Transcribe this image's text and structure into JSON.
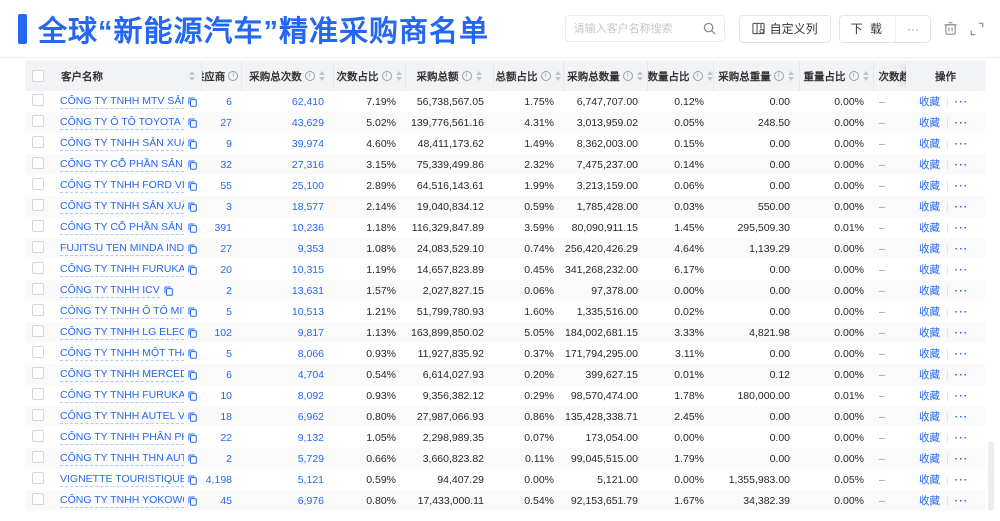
{
  "page": {
    "title": "全球“新能源汽车”精准采购商名单"
  },
  "toolbar": {
    "search_placeholder": "请输入客户名称搜索",
    "custom_columns_label": "自定义列",
    "download_label": "下 载",
    "more_label": "···"
  },
  "colors": {
    "accent_blue": "#2468f2",
    "header_bg": "#f2f3f6"
  },
  "table": {
    "columns": [
      {
        "key": "checkbox",
        "label": "",
        "checkbox": true
      },
      {
        "key": "name",
        "label": "客户名称",
        "sort": true
      },
      {
        "key": "supplier",
        "label": "供应商",
        "info": true,
        "sort": true
      },
      {
        "key": "total_count",
        "label": "采购总次数",
        "info": true,
        "sort": true
      },
      {
        "key": "count_ratio",
        "label": "次数占比",
        "info": true,
        "sort": true
      },
      {
        "key": "total_amount",
        "label": "采购总额",
        "info": true,
        "sort": true
      },
      {
        "key": "amount_ratio",
        "label": "总额占比",
        "info": true,
        "sort": true
      },
      {
        "key": "total_qty",
        "label": "采购总数量",
        "info": true,
        "sort": true
      },
      {
        "key": "qty_ratio",
        "label": "数量占比",
        "info": true,
        "sort": true
      },
      {
        "key": "total_weight",
        "label": "采购总重量",
        "info": true,
        "sort": true
      },
      {
        "key": "weight_ratio",
        "label": "重量占比",
        "info": true,
        "sort": true
      },
      {
        "key": "trend",
        "label": "次数趋势"
      },
      {
        "key": "ops",
        "label": "操作"
      }
    ],
    "ops": {
      "favorite_label": "收藏",
      "more_label": "···"
    },
    "rows": [
      {
        "name": "CÔNG TY TNHH MTV SẢN XUẤ...",
        "supplier": "6",
        "total_count": "62,410",
        "count_ratio": "7.19%",
        "total_amount": "56,738,567.05",
        "amount_ratio": "1.75%",
        "total_qty": "6,747,707.00",
        "qty_ratio": "0.12%",
        "total_weight": "0.00",
        "weight_ratio": "0.00%",
        "trend": "–"
      },
      {
        "name": "CÔNG TY Ô TÔ TOYOTA VIỆT ...",
        "supplier": "27",
        "total_count": "43,629",
        "count_ratio": "5.02%",
        "total_amount": "139,776,561.16",
        "amount_ratio": "4.31%",
        "total_qty": "3,013,959.02",
        "qty_ratio": "0.05%",
        "total_weight": "248.50",
        "weight_ratio": "0.00%",
        "trend": "–"
      },
      {
        "name": "CÔNG TY TNHH SẢN XUẤT VÀ ...",
        "supplier": "9",
        "total_count": "39,974",
        "count_ratio": "4.60%",
        "total_amount": "48,411,173.62",
        "amount_ratio": "1.49%",
        "total_qty": "8,362,003.00",
        "qty_ratio": "0.15%",
        "total_weight": "0.00",
        "weight_ratio": "0.00%",
        "trend": "–"
      },
      {
        "name": "CÔNG TY CỔ PHẦN SẢN XUẤT...",
        "supplier": "32",
        "total_count": "27,316",
        "count_ratio": "3.15%",
        "total_amount": "75,339,499.86",
        "amount_ratio": "2.32%",
        "total_qty": "7,475,237.00",
        "qty_ratio": "0.14%",
        "total_weight": "0.00",
        "weight_ratio": "0.00%",
        "trend": "–"
      },
      {
        "name": "CÔNG TY TNHH FORD VIỆT NAM",
        "supplier": "55",
        "total_count": "25,100",
        "count_ratio": "2.89%",
        "total_amount": "64,516,143.61",
        "amount_ratio": "1.99%",
        "total_qty": "3,213,159.00",
        "qty_ratio": "0.06%",
        "total_weight": "0.00",
        "weight_ratio": "0.00%",
        "trend": "–"
      },
      {
        "name": "CÔNG TY TNHH SẢN XUẤT VÀ ...",
        "supplier": "3",
        "total_count": "18,577",
        "count_ratio": "2.14%",
        "total_amount": "19,040,834.12",
        "amount_ratio": "0.59%",
        "total_qty": "1,785,428.00",
        "qty_ratio": "0.03%",
        "total_weight": "550.00",
        "weight_ratio": "0.00%",
        "trend": "–"
      },
      {
        "name": "CÔNG TY CỔ PHẦN SẢN XUẤT...",
        "supplier": "391",
        "total_count": "10,236",
        "count_ratio": "1.18%",
        "total_amount": "116,329,847.89",
        "amount_ratio": "3.59%",
        "total_qty": "80,090,911.15",
        "qty_ratio": "1.45%",
        "total_weight": "295,509.30",
        "weight_ratio": "0.01%",
        "trend": "–"
      },
      {
        "name": "FUJITSU TEN MINDA INDIA PVT...",
        "supplier": "27",
        "total_count": "9,353",
        "count_ratio": "1.08%",
        "total_amount": "24,083,529.10",
        "amount_ratio": "0.74%",
        "total_qty": "256,420,426.29",
        "qty_ratio": "4.64%",
        "total_weight": "1,139.29",
        "weight_ratio": "0.00%",
        "trend": "–"
      },
      {
        "name": "CÔNG TY TNHH FURUKAWA A...",
        "supplier": "20",
        "total_count": "10,315",
        "count_ratio": "1.19%",
        "total_amount": "14,657,823.89",
        "amount_ratio": "0.45%",
        "total_qty": "341,268,232.00",
        "qty_ratio": "6.17%",
        "total_weight": "0.00",
        "weight_ratio": "0.00%",
        "trend": "–"
      },
      {
        "name": "CÔNG TY TNHH ICV",
        "supplier": "2",
        "total_count": "13,631",
        "count_ratio": "1.57%",
        "total_amount": "2,027,827.15",
        "amount_ratio": "0.06%",
        "total_qty": "97,378.00",
        "qty_ratio": "0.00%",
        "total_weight": "0.00",
        "weight_ratio": "0.00%",
        "trend": "–"
      },
      {
        "name": "CÔNG TY TNHH Ô TÔ MITSUBI...",
        "supplier": "5",
        "total_count": "10,513",
        "count_ratio": "1.21%",
        "total_amount": "51,799,780.93",
        "amount_ratio": "1.60%",
        "total_qty": "1,335,516.00",
        "qty_ratio": "0.02%",
        "total_weight": "0.00",
        "weight_ratio": "0.00%",
        "trend": "–"
      },
      {
        "name": "CÔNG TY TNHH LG ELECTRON...",
        "supplier": "102",
        "total_count": "9,817",
        "count_ratio": "1.13%",
        "total_amount": "163,899,850.02",
        "amount_ratio": "5.05%",
        "total_qty": "184,002,681.15",
        "qty_ratio": "3.33%",
        "total_weight": "4,821.98",
        "weight_ratio": "0.00%",
        "trend": "–"
      },
      {
        "name": "CÔNG TY TNHH MỘT THÀNH V...",
        "supplier": "5",
        "total_count": "8,066",
        "count_ratio": "0.93%",
        "total_amount": "11,927,835.92",
        "amount_ratio": "0.37%",
        "total_qty": "171,794,295.00",
        "qty_ratio": "3.11%",
        "total_weight": "0.00",
        "weight_ratio": "0.00%",
        "trend": "–"
      },
      {
        "name": "CÔNG TY TNHH MERCEDES–B...",
        "supplier": "6",
        "total_count": "4,704",
        "count_ratio": "0.54%",
        "total_amount": "6,614,027.93",
        "amount_ratio": "0.20%",
        "total_qty": "399,627.15",
        "qty_ratio": "0.01%",
        "total_weight": "0.12",
        "weight_ratio": "0.00%",
        "trend": "–"
      },
      {
        "name": "CÔNG TY TNHH FURUKAWA A...",
        "supplier": "10",
        "total_count": "8,092",
        "count_ratio": "0.93%",
        "total_amount": "9,356,382.12",
        "amount_ratio": "0.29%",
        "total_qty": "98,570,474.00",
        "qty_ratio": "1.78%",
        "total_weight": "180,000.00",
        "weight_ratio": "0.01%",
        "trend": "–"
      },
      {
        "name": "CÔNG TY TNHH AUTEL VIỆT N...",
        "supplier": "18",
        "total_count": "6,962",
        "count_ratio": "0.80%",
        "total_amount": "27,987,066.93",
        "amount_ratio": "0.86%",
        "total_qty": "135,428,338.71",
        "qty_ratio": "2.45%",
        "total_weight": "0.00",
        "weight_ratio": "0.00%",
        "trend": "–"
      },
      {
        "name": "CÔNG TY TNHH PHÂN PHỐI T...",
        "supplier": "22",
        "total_count": "9,132",
        "count_ratio": "1.05%",
        "total_amount": "2,298,989.35",
        "amount_ratio": "0.07%",
        "total_qty": "173,054.00",
        "qty_ratio": "0.00%",
        "total_weight": "0.00",
        "weight_ratio": "0.00%",
        "trend": "–"
      },
      {
        "name": "CÔNG TY TNHH THN AUTOPAR...",
        "supplier": "2",
        "total_count": "5,729",
        "count_ratio": "0.66%",
        "total_amount": "3,660,823.82",
        "amount_ratio": "0.11%",
        "total_qty": "99,045,515.00",
        "qty_ratio": "1.79%",
        "total_weight": "0.00",
        "weight_ratio": "0.00%",
        "trend": "–"
      },
      {
        "name": "VIGNETTE TOURISTIQUE G UNI...",
        "supplier": "4,198",
        "total_count": "5,121",
        "count_ratio": "0.59%",
        "total_amount": "94,407.29",
        "amount_ratio": "0.00%",
        "total_qty": "5,121.00",
        "qty_ratio": "0.00%",
        "total_weight": "1,355,983.00",
        "weight_ratio": "0.05%",
        "trend": "–"
      },
      {
        "name": "CÔNG TY TNHH YOKOWO VIỆT...",
        "supplier": "45",
        "total_count": "6,976",
        "count_ratio": "0.80%",
        "total_amount": "17,433,000.11",
        "amount_ratio": "0.54%",
        "total_qty": "92,153,651.79",
        "qty_ratio": "1.67%",
        "total_weight": "34,382.39",
        "weight_ratio": "0.00%",
        "trend": "–"
      }
    ]
  }
}
